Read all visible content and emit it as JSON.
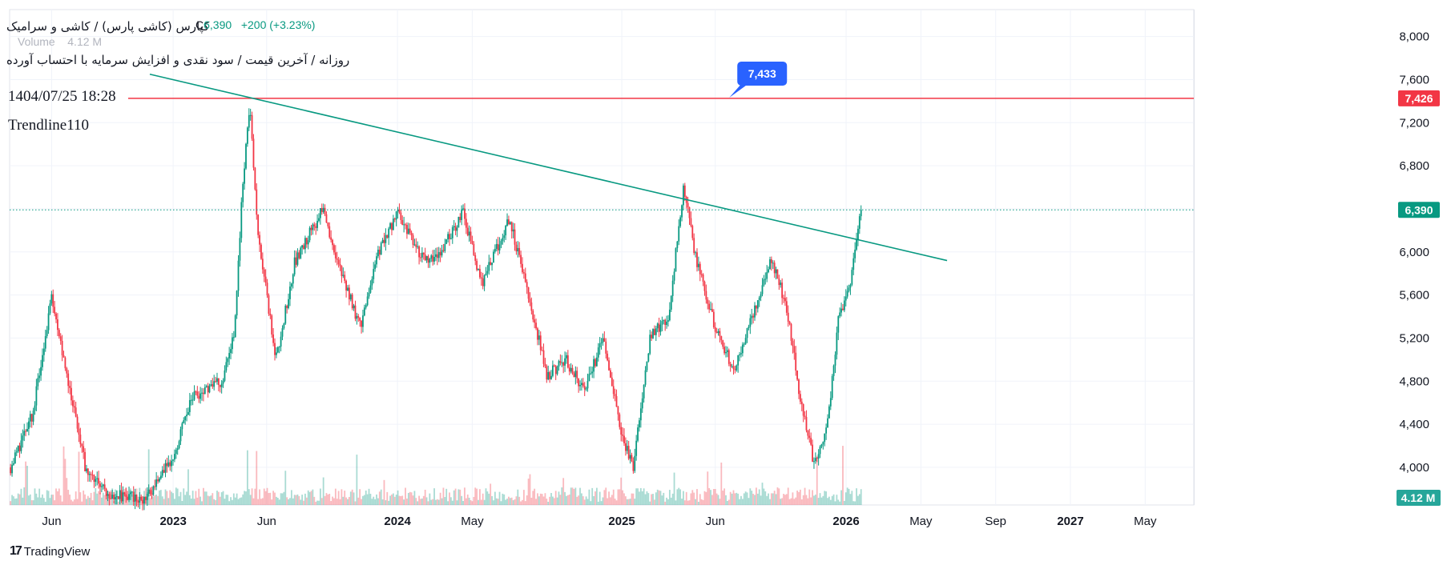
{
  "header": {
    "title": "کپارس (کاشی پارس) / کاشی و سرامیک",
    "subtitle": "روزانه / آخرین قیمت / سود نقدی و افزایش سرمایه با احتساب آورده",
    "date_time": "1404/07/25 18:28",
    "trendline_label": "Trendline110",
    "ohlc_close_letter": "C",
    "ohlc_close_value": "6,390",
    "ohlc_change": "+200 (+3.23%)",
    "volume_label": "Volume",
    "volume_value": "4.12 M"
  },
  "brand": {
    "logo_mark": "17",
    "name": "TradingView"
  },
  "colors": {
    "up": "#089981",
    "down": "#f23645",
    "trendline": "#089981",
    "resistance": "#f23645",
    "callout": "#2962ff",
    "grid": "#f0f3fa",
    "text": "#131722"
  },
  "chart_data": {
    "type": "candlestick",
    "y_ticks": [
      "4,000",
      "4,400",
      "4,800",
      "5,200",
      "5,600",
      "6,000",
      "6,400",
      "6,800",
      "7,200",
      "7,600",
      "8,000"
    ],
    "ylim": [
      3650,
      8250
    ],
    "x_ticks": [
      {
        "label": "Jun",
        "month": 5.5,
        "bold": false
      },
      {
        "label": "2023",
        "month": 12,
        "bold": true
      },
      {
        "label": "Jun",
        "month": 17,
        "bold": false
      },
      {
        "label": "2024",
        "month": 24,
        "bold": true
      },
      {
        "label": "May",
        "month": 28,
        "bold": false
      },
      {
        "label": "2025",
        "month": 36,
        "bold": true
      },
      {
        "label": "Jun",
        "month": 41,
        "bold": false
      },
      {
        "label": "2026",
        "month": 48,
        "bold": true
      },
      {
        "label": "May",
        "month": 52,
        "bold": false
      },
      {
        "label": "Sep",
        "month": 56,
        "bold": false
      },
      {
        "label": "2027",
        "month": 60,
        "bold": true
      },
      {
        "label": "May",
        "month": 64,
        "bold": false
      }
    ],
    "xlim": [
      3.25,
      66.6
    ],
    "last_price": {
      "value": 6390,
      "label": "6,390"
    },
    "resistance": {
      "value": 7426,
      "label": "7,426"
    },
    "callout": {
      "value": 7433,
      "label": "7,433",
      "month": 41.75
    },
    "volume_tag": "4.12 M",
    "trendline": [
      {
        "month": 10.75,
        "value": 7650
      },
      {
        "month": 53.4,
        "value": 5920
      }
    ],
    "price_path": [
      {
        "month": 3.3,
        "value": 4000
      },
      {
        "month": 4.5,
        "value": 4500
      },
      {
        "month": 5.5,
        "value": 5600
      },
      {
        "month": 6.5,
        "value": 4700
      },
      {
        "month": 7.3,
        "value": 4000
      },
      {
        "month": 8.5,
        "value": 3760
      },
      {
        "month": 10.5,
        "value": 3700
      },
      {
        "month": 12,
        "value": 4100
      },
      {
        "month": 13,
        "value": 4650
      },
      {
        "month": 14.6,
        "value": 4800
      },
      {
        "month": 15.3,
        "value": 5300
      },
      {
        "month": 15.7,
        "value": 6600
      },
      {
        "month": 16.1,
        "value": 7400
      },
      {
        "month": 16.5,
        "value": 6200
      },
      {
        "month": 17.5,
        "value": 5000
      },
      {
        "month": 18.5,
        "value": 5900
      },
      {
        "month": 20,
        "value": 6400
      },
      {
        "month": 21,
        "value": 5800
      },
      {
        "month": 22,
        "value": 5300
      },
      {
        "month": 23,
        "value": 6000
      },
      {
        "month": 24,
        "value": 6350
      },
      {
        "month": 25.5,
        "value": 5900
      },
      {
        "month": 26.5,
        "value": 6050
      },
      {
        "month": 27.5,
        "value": 6380
      },
      {
        "month": 28.5,
        "value": 5700
      },
      {
        "month": 30,
        "value": 6300
      },
      {
        "month": 31,
        "value": 5600
      },
      {
        "month": 32,
        "value": 4850
      },
      {
        "month": 33,
        "value": 5000
      },
      {
        "month": 34,
        "value": 4700
      },
      {
        "month": 35,
        "value": 5200
      },
      {
        "month": 36,
        "value": 4300
      },
      {
        "month": 36.6,
        "value": 4000
      },
      {
        "month": 37.5,
        "value": 5200
      },
      {
        "month": 38.5,
        "value": 5400
      },
      {
        "month": 39.3,
        "value": 6600
      },
      {
        "month": 40,
        "value": 5900
      },
      {
        "month": 41,
        "value": 5300
      },
      {
        "month": 42,
        "value": 4900
      },
      {
        "month": 43,
        "value": 5400
      },
      {
        "month": 44,
        "value": 5950
      },
      {
        "month": 44.8,
        "value": 5500
      },
      {
        "month": 45.5,
        "value": 4700
      },
      {
        "month": 46.3,
        "value": 4000
      },
      {
        "month": 47,
        "value": 4400
      },
      {
        "month": 47.6,
        "value": 5400
      },
      {
        "month": 48.2,
        "value": 5700
      },
      {
        "month": 48.8,
        "value": 6390
      }
    ]
  }
}
